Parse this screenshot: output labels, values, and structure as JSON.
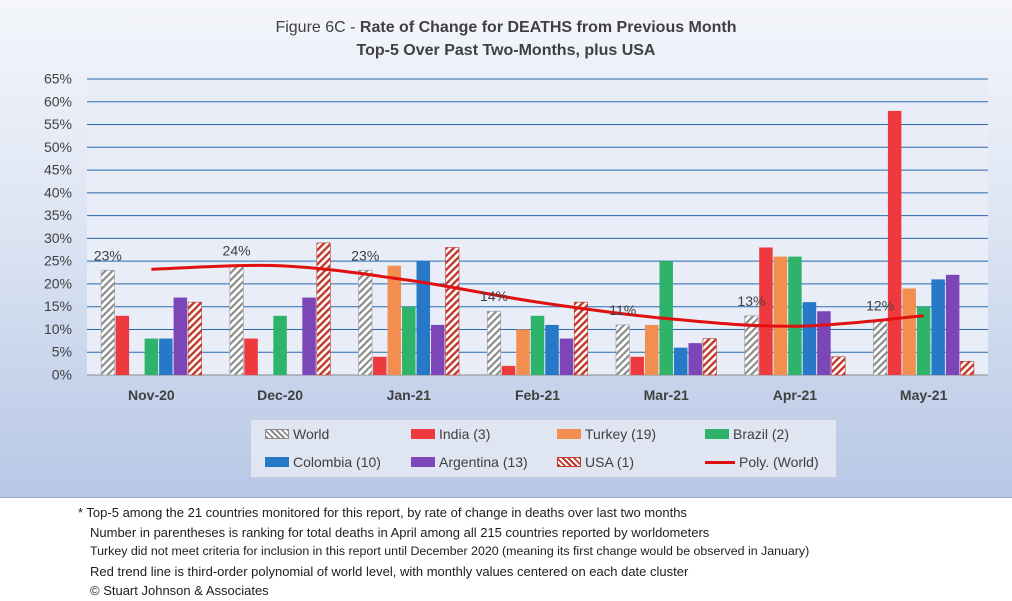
{
  "title": {
    "prefix": "Figure 6C - ",
    "bold_part": "Rate of Change for DEATHS from Previous Month",
    "subtitle": "Top-5 Over Past Two-Months, plus USA"
  },
  "chart_data": {
    "type": "bar",
    "title": "Figure 6C - Rate of Change for DEATHS from Previous Month",
    "subtitle": "Top-5 Over Past Two-Months, plus USA",
    "xlabel": "",
    "ylabel": "",
    "ylim": [
      0,
      65
    ],
    "y_ticks": [
      "0%",
      "5%",
      "10%",
      "15%",
      "20%",
      "25%",
      "30%",
      "35%",
      "40%",
      "45%",
      "50%",
      "55%",
      "60%",
      "65%"
    ],
    "y_tick_values": [
      0,
      5,
      10,
      15,
      20,
      25,
      30,
      35,
      40,
      45,
      50,
      55,
      60,
      65
    ],
    "grid": true,
    "legend_position": "bottom",
    "categories": [
      "Nov-20",
      "Dec-20",
      "Jan-21",
      "Feb-21",
      "Mar-21",
      "Apr-21",
      "May-21"
    ],
    "series": [
      {
        "name": "World",
        "color": "#b5b5b5",
        "pattern": "hatch-grey",
        "values": [
          23,
          24,
          23,
          14,
          11,
          13,
          12
        ],
        "labels": [
          "23%",
          "24%",
          "23%",
          "14%",
          "11%",
          "13%",
          "12%"
        ]
      },
      {
        "name": "India (3)",
        "color": "#ee3a3f",
        "values": [
          13,
          8,
          4,
          2,
          4,
          28,
          58
        ]
      },
      {
        "name": "Turkey (19)",
        "color": "#f28f50",
        "values": [
          0,
          0,
          24,
          10,
          11,
          26,
          19
        ]
      },
      {
        "name": "Brazil (2)",
        "color": "#2db36a",
        "values": [
          8,
          13,
          15,
          13,
          25,
          26,
          15
        ]
      },
      {
        "name": "Colombia (10)",
        "color": "#2878c8",
        "values": [
          8,
          0,
          25,
          11,
          6,
          16,
          21
        ]
      },
      {
        "name": "Argentina (13)",
        "color": "#7c46b8",
        "values": [
          17,
          17,
          11,
          8,
          7,
          14,
          22
        ]
      },
      {
        "name": "USA (1)",
        "color": "#c0392b",
        "pattern": "hatch-red",
        "values": [
          16,
          29,
          28,
          16,
          8,
          4,
          3
        ]
      }
    ],
    "trend": {
      "name": "Poly. (World)",
      "type": "polynomial",
      "order": 3,
      "color": "#e01010",
      "values": [
        23.2,
        24.0,
        20.8,
        16.0,
        12.4,
        10.7,
        13.0
      ]
    }
  },
  "legend": {
    "items": [
      {
        "label": "World",
        "kind": "hatch-grey"
      },
      {
        "label": "India (3)",
        "kind": "solid",
        "color": "#ee3a3f"
      },
      {
        "label": "Turkey (19)",
        "kind": "solid",
        "color": "#f28f50"
      },
      {
        "label": "Brazil (2)",
        "kind": "solid",
        "color": "#2db36a"
      },
      {
        "label": "Colombia (10)",
        "kind": "solid",
        "color": "#2878c8"
      },
      {
        "label": "Argentina (13)",
        "kind": "solid",
        "color": "#7c46b8"
      },
      {
        "label": "USA (1)",
        "kind": "hatch-red"
      },
      {
        "label": "Poly. (World)",
        "kind": "line",
        "color": "#e01010"
      }
    ]
  },
  "notes": [
    "* Top-5 among the 21 countries monitored for this report, by rate of change in deaths over last two months",
    "Number in parentheses is ranking for total deaths in April among all 215 countries reported by worldometers",
    "Turkey did not meet criteria for inclusion in this report until December 2020 (meaning its first change would be observed in January)",
    "Red trend line is third-order polynomial of world level, with monthly values centered on each date cluster",
    "© Stuart Johnson & Associates"
  ]
}
